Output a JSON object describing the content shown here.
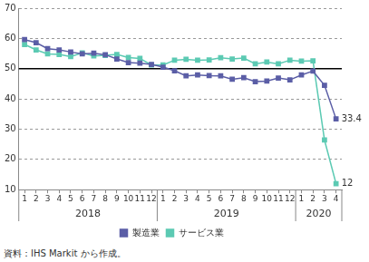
{
  "chart_data": {
    "type": "line",
    "source": "資料：IHS Markit から作成。",
    "categories": [
      "1",
      "2",
      "3",
      "4",
      "5",
      "6",
      "7",
      "8",
      "9",
      "10",
      "11",
      "12",
      "1",
      "2",
      "3",
      "4",
      "5",
      "6",
      "7",
      "8",
      "9",
      "10",
      "11",
      "12",
      "1",
      "2",
      "3",
      "4"
    ],
    "year_groups": [
      {
        "label": "2018",
        "count": 12
      },
      {
        "label": "2019",
        "count": 12
      },
      {
        "label": "2020",
        "count": 4
      }
    ],
    "series": [
      {
        "name": "製造業",
        "color": "#5b5ea6",
        "marker": "square",
        "values": [
          59.6,
          58.6,
          56.6,
          56.2,
          55.5,
          54.9,
          55.1,
          54.6,
          53.2,
          52.0,
          51.8,
          51.4,
          50.5,
          49.3,
          47.6,
          47.9,
          47.7,
          47.6,
          46.5,
          47.0,
          45.7,
          45.9,
          46.9,
          46.3,
          47.9,
          49.2,
          44.5,
          33.4
        ],
        "value_labels": [
          null,
          null,
          null,
          null,
          null,
          null,
          null,
          null,
          null,
          null,
          null,
          null,
          null,
          null,
          null,
          null,
          null,
          null,
          null,
          null,
          null,
          null,
          null,
          null,
          null,
          null,
          null,
          "33.4"
        ]
      },
      {
        "name": "サービス業",
        "color": "#5ccab3",
        "marker": "square",
        "values": [
          58.0,
          56.2,
          54.9,
          54.7,
          54.0,
          55.2,
          54.2,
          54.4,
          54.7,
          53.7,
          53.4,
          51.2,
          51.2,
          52.8,
          53.1,
          52.8,
          52.9,
          53.6,
          53.2,
          53.5,
          51.6,
          52.2,
          51.6,
          52.8,
          52.5,
          52.6,
          26.4,
          12.0
        ],
        "value_labels": [
          null,
          null,
          null,
          null,
          null,
          null,
          null,
          null,
          null,
          null,
          null,
          null,
          null,
          null,
          null,
          null,
          null,
          null,
          null,
          null,
          null,
          null,
          null,
          null,
          null,
          null,
          null,
          "12"
        ]
      }
    ],
    "ylim": [
      10,
      70
    ],
    "yticks": [
      10,
      20,
      30,
      40,
      50,
      60,
      70
    ],
    "reference_lines": [
      50
    ],
    "grid": true,
    "legend": "bottom"
  }
}
